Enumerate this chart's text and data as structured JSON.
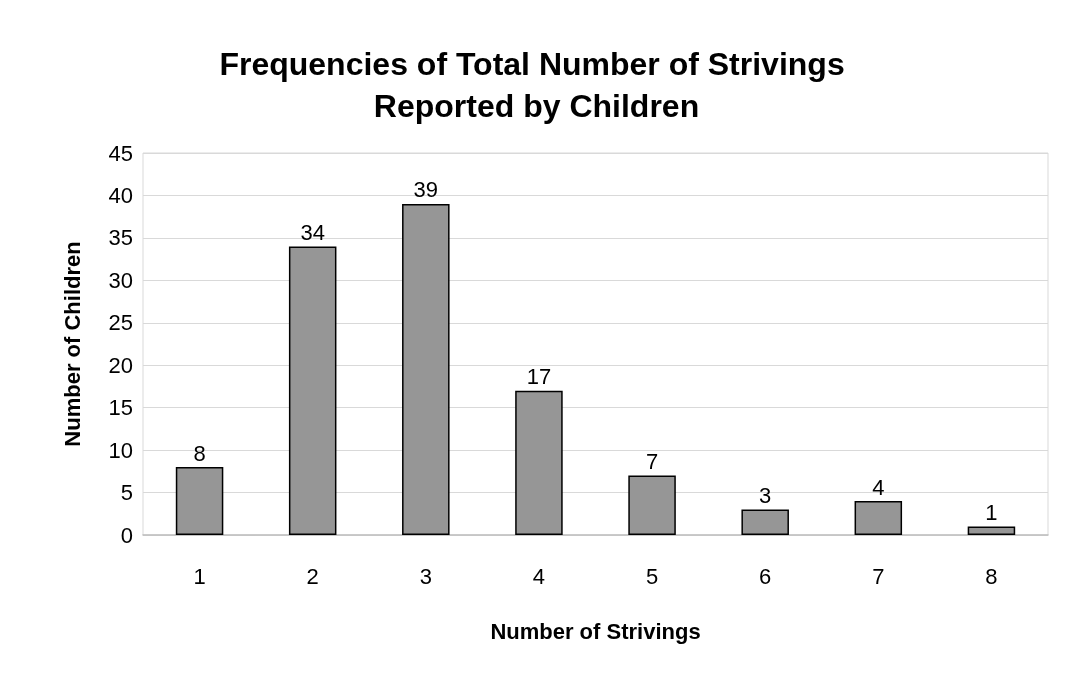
{
  "chart_data": {
    "type": "bar",
    "title": "Frequencies of Total Number of Strivings Reported by Children",
    "xlabel": "Number of Strivings",
    "ylabel": "Number of Children",
    "categories": [
      "1",
      "2",
      "3",
      "4",
      "5",
      "6",
      "7",
      "8"
    ],
    "values": [
      8,
      34,
      39,
      17,
      7,
      3,
      4,
      1
    ],
    "color": "#969696",
    "ylim": [
      0,
      45
    ],
    "yticks": [
      0,
      5,
      10,
      15,
      20,
      25,
      30,
      35,
      40,
      45
    ],
    "grid": "y",
    "data_labels": true
  }
}
